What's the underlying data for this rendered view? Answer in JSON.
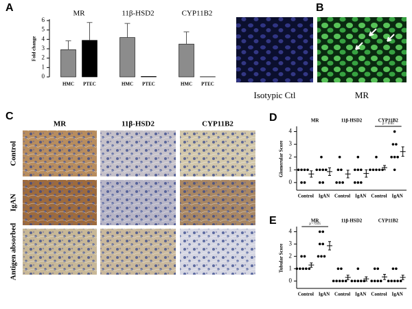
{
  "chart_data": [
    {
      "type": "bar",
      "panel_label": "A",
      "ylabel": "Fold change",
      "groups": [
        "MR",
        "11β-HSD2",
        "CYP11B2"
      ],
      "categories": [
        "HMC",
        "PTEC",
        "HMC",
        "PTEC",
        "HMC",
        "PTEC"
      ],
      "values": [
        2.9,
        3.9,
        4.2,
        0.05,
        3.5,
        0.02
      ],
      "errors": [
        0.95,
        1.9,
        1.5,
        null,
        1.3,
        null
      ],
      "colors": [
        "#8c8c8c",
        "#000000",
        "#8c8c8c",
        "#000000",
        "#8c8c8c",
        "#000000"
      ],
      "ylim": [
        0,
        6
      ],
      "yticks": [
        0,
        1,
        2,
        3,
        4,
        5,
        6
      ]
    },
    {
      "type": "dotplot",
      "panel_label": "D",
      "ylabel": "Glomerular Score",
      "groups": [
        "MR",
        "11β-HSD2",
        "CYP11B2"
      ],
      "categories": [
        "Control",
        "IgAN",
        "Control",
        "IgAN",
        "Control",
        "IgAN"
      ],
      "points": [
        [
          1,
          1,
          1,
          1,
          0,
          0
        ],
        [
          2,
          1,
          1,
          1,
          1,
          0,
          0
        ],
        [
          2,
          1,
          1,
          0,
          0,
          0
        ],
        [
          2,
          1,
          1,
          1,
          0,
          0,
          0
        ],
        [
          1,
          1,
          1,
          1,
          1,
          2
        ],
        [
          4,
          3,
          3,
          2,
          2,
          2,
          1
        ]
      ],
      "means": [
        0.67,
        0.86,
        0.67,
        0.71,
        1.17,
        2.43
      ],
      "errors": [
        0.25,
        0.3,
        0.3,
        0.29,
        0.17,
        0.37
      ],
      "annotation": {
        "text": "p < 0.05",
        "group": "CYP11B2"
      },
      "ylim": [
        -0.6,
        4.3
      ],
      "yticks": [
        0,
        1,
        2,
        3,
        4
      ]
    },
    {
      "type": "dotplot",
      "panel_label": "E",
      "ylabel": "Tubular Score",
      "groups": [
        "MR",
        "11β-HSD2",
        "CYP11B2"
      ],
      "categories": [
        "Control",
        "IgAN",
        "Control",
        "IgAN",
        "Control",
        "IgAN"
      ],
      "points": [
        [
          1,
          1,
          1,
          1,
          1,
          2,
          2
        ],
        [
          4,
          4,
          3,
          3,
          2,
          2,
          2
        ],
        [
          1,
          1,
          0,
          0,
          0,
          0,
          0
        ],
        [
          1,
          0,
          0,
          0,
          0,
          0
        ],
        [
          1,
          1,
          0,
          0,
          0,
          0
        ],
        [
          1,
          1,
          0,
          0,
          0,
          0,
          0
        ]
      ],
      "means": [
        1.29,
        2.86,
        0.29,
        0.17,
        0.33,
        0.29
      ],
      "errors": [
        0.18,
        0.34,
        0.18,
        0.17,
        0.21,
        0.18
      ],
      "annotation": {
        "text": "p < 0.05",
        "group": "MR"
      },
      "ylim": [
        -0.6,
        4.3
      ],
      "yticks": [
        0,
        1,
        2,
        3,
        4
      ]
    }
  ],
  "panel_b": {
    "label": "B",
    "captions": [
      "Isotypic Ctl",
      "MR"
    ]
  },
  "panel_c": {
    "label": "C",
    "columns": [
      "MR",
      "11β-HSD2",
      "CYP11B2"
    ],
    "rows": [
      "Control",
      "IgAN",
      "Antigen absorbed"
    ]
  }
}
